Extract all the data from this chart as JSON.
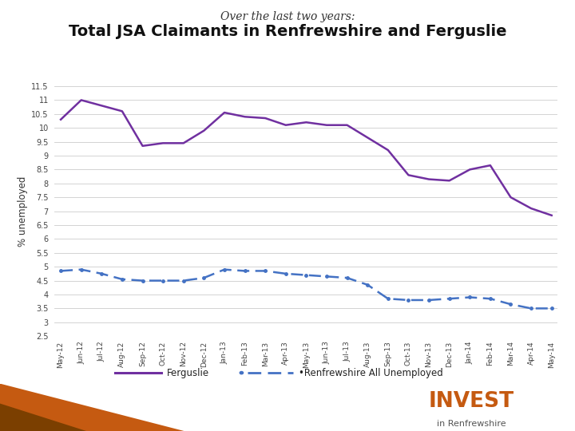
{
  "title_top": "Over the last two years:",
  "title_main": "Total JSA Claimants in Renfrewshire and Ferguslie",
  "ylabel": "% unemployed",
  "x_labels": [
    "May-12",
    "Jun-12",
    "Jul-12",
    "Aug-12",
    "Sep-12",
    "Oct-12",
    "Nov-12",
    "Dec-12",
    "Jan-13",
    "Feb-13",
    "Mar-13",
    "Apr-13",
    "May-13",
    "Jun-13",
    "Jul-13",
    "Aug-13",
    "Sep-13",
    "Oct-13",
    "Nov-13",
    "Dec-13",
    "Jan-14",
    "Feb-14",
    "Mar-14",
    "Apr-14",
    "May-14"
  ],
  "ferguslie": [
    10.3,
    11.0,
    10.8,
    10.6,
    9.35,
    9.45,
    9.45,
    9.9,
    10.55,
    10.4,
    10.35,
    10.1,
    10.2,
    10.1,
    10.1,
    9.65,
    9.2,
    8.3,
    8.15,
    8.1,
    8.5,
    8.65,
    7.5,
    7.1,
    6.85
  ],
  "renfrewshire": [
    4.85,
    4.9,
    4.75,
    4.55,
    4.5,
    4.5,
    4.5,
    4.6,
    4.9,
    4.85,
    4.85,
    4.75,
    4.7,
    4.65,
    4.6,
    4.35,
    3.85,
    3.8,
    3.8,
    3.85,
    3.9,
    3.85,
    3.65,
    3.5,
    3.5
  ],
  "ferguslie_color": "#7030a0",
  "renfrewshire_color": "#4472c4",
  "ylim_min": 2.5,
  "ylim_max": 11.5,
  "yticks": [
    2.5,
    3,
    3.5,
    4,
    4.5,
    5,
    5.5,
    6,
    6.5,
    7,
    7.5,
    8,
    8.5,
    9,
    9.5,
    10,
    10.5,
    11,
    11.5
  ],
  "background_color": "#ffffff",
  "grid_color": "#cccccc",
  "legend_ferguslie": "Ferguslie",
  "legend_renfrewshire": "•Renfrewshire All Unemployed",
  "orange_color": "#c55a11",
  "brown_color": "#7b3f00",
  "invest_color": "#c55a11"
}
